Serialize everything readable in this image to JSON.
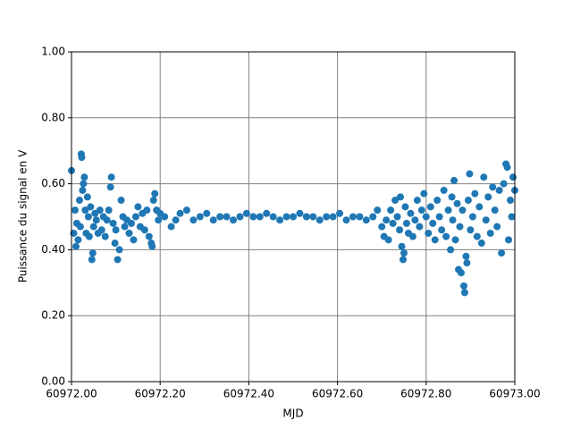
{
  "chart_data": {
    "type": "scatter",
    "xlabel": "MJD",
    "ylabel": "Puissance du signal en V",
    "color": "#1f77b4",
    "grid": true,
    "xlim": [
      60972,
      60973
    ],
    "ylim": [
      0,
      1
    ],
    "xticks": [
      {
        "value": 60972,
        "label": "60972.00"
      },
      {
        "value": 60972.2,
        "label": "60972.20"
      },
      {
        "value": 60972.4,
        "label": "60972.40"
      },
      {
        "value": 60972.6,
        "label": "60972.60"
      },
      {
        "value": 60972.8,
        "label": "60972.80"
      },
      {
        "value": 60973,
        "label": "60973.00"
      }
    ],
    "yticks": [
      {
        "value": 0,
        "label": "0.00"
      },
      {
        "value": 0.2,
        "label": "0.20"
      },
      {
        "value": 0.4,
        "label": "0.40"
      },
      {
        "value": 0.6,
        "label": "0.60"
      },
      {
        "value": 0.8,
        "label": "0.80"
      },
      {
        "value": 1,
        "label": "1.00"
      }
    ],
    "x": [
      60972.0,
      60972.005,
      60972.008,
      60972.01,
      60972.012,
      60972.015,
      60972.018,
      60972.02,
      60972.022,
      60972.023,
      60972.025,
      60972.027,
      60972.029,
      60972.031,
      60972.033,
      60972.036,
      60972.038,
      60972.04,
      60972.043,
      60972.046,
      60972.048,
      60972.05,
      60972.053,
      60972.056,
      60972.06,
      60972.064,
      60972.068,
      60972.072,
      60972.076,
      60972.08,
      60972.084,
      60972.088,
      60972.09,
      60972.094,
      60972.098,
      60972.1,
      60972.104,
      60972.108,
      60972.112,
      60972.116,
      60972.12,
      60972.125,
      60972.13,
      60972.135,
      60972.14,
      60972.145,
      60972.15,
      60972.155,
      60972.16,
      60972.165,
      60972.17,
      60972.175,
      60972.18,
      60972.182,
      60972.185,
      60972.188,
      60972.192,
      60972.196,
      60972.2,
      60972.21,
      60972.225,
      60972.235,
      60972.245,
      60972.26,
      60972.275,
      60972.29,
      60972.305,
      60972.32,
      60972.335,
      60972.35,
      60972.365,
      60972.38,
      60972.395,
      60972.41,
      60972.425,
      60972.44,
      60972.455,
      60972.47,
      60972.485,
      60972.5,
      60972.515,
      60972.53,
      60972.545,
      60972.56,
      60972.575,
      60972.59,
      60972.605,
      60972.62,
      60972.635,
      60972.65,
      60972.665,
      60972.68,
      60972.69,
      60972.7,
      60972.705,
      60972.71,
      60972.715,
      60972.72,
      60972.725,
      60972.73,
      60972.735,
      60972.74,
      60972.742,
      60972.745,
      60972.748,
      60972.75,
      60972.753,
      60972.756,
      60972.76,
      60972.765,
      60972.77,
      60972.775,
      60972.78,
      60972.785,
      60972.79,
      60972.795,
      60972.8,
      60972.805,
      60972.81,
      60972.815,
      60972.82,
      60972.825,
      60972.83,
      60972.835,
      60972.84,
      60972.845,
      60972.85,
      60972.855,
      60972.858,
      60972.86,
      60972.863,
      60972.866,
      60972.87,
      60972.873,
      60972.876,
      60972.879,
      60972.882,
      60972.885,
      60972.887,
      60972.89,
      60972.892,
      60972.895,
      60972.898,
      60972.9,
      60972.905,
      60972.91,
      60972.915,
      60972.92,
      60972.925,
      60972.93,
      60972.935,
      60972.94,
      60972.945,
      60972.95,
      60972.955,
      60972.96,
      60972.965,
      60972.97,
      60972.975,
      60972.98,
      60972.983,
      60972.986,
      60972.99,
      60972.993,
      60972.996,
      60973.0
    ],
    "values": [
      0.64,
      0.45,
      0.52,
      0.41,
      0.48,
      0.43,
      0.55,
      0.47,
      0.69,
      0.68,
      0.58,
      0.6,
      0.62,
      0.52,
      0.45,
      0.56,
      0.5,
      0.44,
      0.53,
      0.37,
      0.39,
      0.47,
      0.51,
      0.49,
      0.45,
      0.52,
      0.46,
      0.5,
      0.44,
      0.49,
      0.52,
      0.59,
      0.62,
      0.48,
      0.42,
      0.46,
      0.37,
      0.4,
      0.55,
      0.5,
      0.47,
      0.49,
      0.45,
      0.48,
      0.43,
      0.5,
      0.53,
      0.47,
      0.51,
      0.46,
      0.52,
      0.44,
      0.42,
      0.41,
      0.55,
      0.57,
      0.52,
      0.49,
      0.51,
      0.5,
      0.47,
      0.49,
      0.51,
      0.52,
      0.49,
      0.5,
      0.51,
      0.49,
      0.5,
      0.5,
      0.49,
      0.5,
      0.51,
      0.5,
      0.5,
      0.51,
      0.5,
      0.49,
      0.5,
      0.5,
      0.51,
      0.5,
      0.5,
      0.49,
      0.5,
      0.5,
      0.51,
      0.49,
      0.5,
      0.5,
      0.49,
      0.5,
      0.52,
      0.47,
      0.44,
      0.49,
      0.43,
      0.52,
      0.48,
      0.55,
      0.5,
      0.46,
      0.56,
      0.41,
      0.37,
      0.39,
      0.53,
      0.48,
      0.45,
      0.51,
      0.44,
      0.49,
      0.55,
      0.47,
      0.52,
      0.57,
      0.5,
      0.45,
      0.53,
      0.48,
      0.43,
      0.55,
      0.5,
      0.46,
      0.58,
      0.44,
      0.52,
      0.4,
      0.56,
      0.49,
      0.61,
      0.43,
      0.54,
      0.34,
      0.47,
      0.33,
      0.52,
      0.29,
      0.27,
      0.38,
      0.36,
      0.55,
      0.63,
      0.46,
      0.5,
      0.57,
      0.44,
      0.53,
      0.42,
      0.62,
      0.49,
      0.56,
      0.45,
      0.59,
      0.52,
      0.47,
      0.58,
      0.39,
      0.6,
      0.66,
      0.65,
      0.43,
      0.55,
      0.5,
      0.62,
      0.58
    ]
  }
}
